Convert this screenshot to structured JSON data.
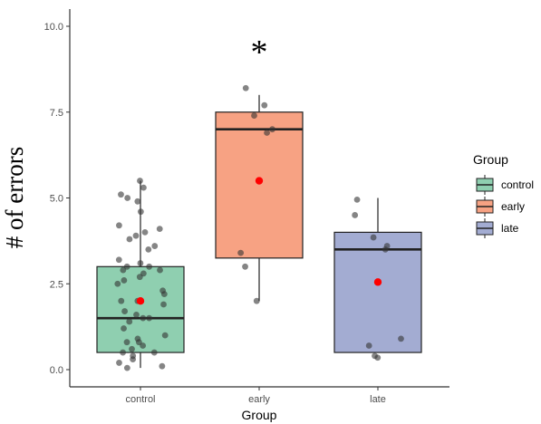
{
  "chart_data": {
    "type": "box",
    "xlabel": "Group",
    "ylabel": "# of errors",
    "ylim": [
      -0.5,
      10.5
    ],
    "yticks": [
      "0.0",
      "2.5",
      "5.0",
      "7.5",
      "10.0"
    ],
    "categories": [
      "control",
      "early",
      "late"
    ],
    "annotation": "*",
    "legend": {
      "title": "Group",
      "position": "right",
      "entries": [
        "control",
        "early",
        "late"
      ]
    },
    "colors": {
      "control": "#8fcfb0",
      "early": "#f7a283",
      "late": "#a3acd2",
      "mean": "#ff0000",
      "point": "#333333"
    },
    "boxes": [
      {
        "group": "control",
        "whisker_low": 0.05,
        "q1": 0.5,
        "median": 1.5,
        "q3": 3.0,
        "whisker_high": 5.5,
        "mean": 2.0,
        "points": [
          5.5,
          5.3,
          5.1,
          5.0,
          4.9,
          4.6,
          4.2,
          4.1,
          4.0,
          3.9,
          3.8,
          3.6,
          3.5,
          3.2,
          3.1,
          3.0,
          3.0,
          2.9,
          2.8,
          2.7,
          2.6,
          2.5,
          2.3,
          2.2,
          2.0,
          2.0,
          1.9,
          1.7,
          1.6,
          1.5,
          1.5,
          1.4,
          1.2,
          1.0,
          0.9,
          0.8,
          0.7,
          0.6,
          0.5,
          0.5,
          0.4,
          0.3,
          0.2,
          0.1,
          0.05,
          2.9,
          0.8
        ]
      },
      {
        "group": "early",
        "whisker_low": 2.0,
        "q1": 3.25,
        "median": 7.0,
        "q3": 7.5,
        "whisker_high": 8.0,
        "mean": 5.5,
        "points": [
          8.2,
          7.7,
          7.4,
          7.0,
          6.9,
          3.4,
          3.0,
          2.0
        ]
      },
      {
        "group": "late",
        "whisker_low": 0.5,
        "q1": 0.5,
        "median": 3.5,
        "q3": 4.0,
        "whisker_high": 5.0,
        "mean": 2.55,
        "points": [
          4.95,
          4.5,
          3.85,
          3.6,
          3.5,
          0.9,
          0.7,
          0.4,
          0.35
        ]
      }
    ]
  }
}
